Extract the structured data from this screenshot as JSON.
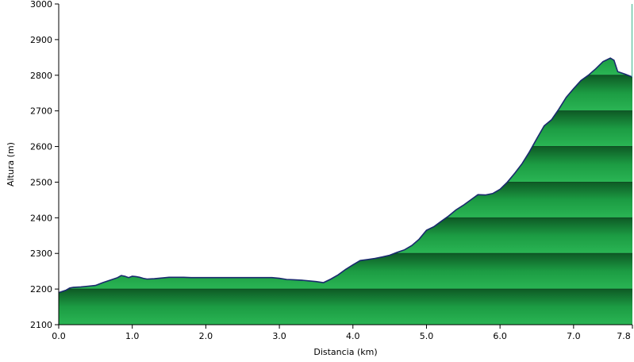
{
  "chart_data": {
    "type": "area",
    "title": "",
    "xlabel": "Distancia   (km)",
    "ylabel": "Altura (m)",
    "xlim": [
      0,
      7.8
    ],
    "ylim": [
      2100,
      3000
    ],
    "x_ticks": [
      0.0,
      1.0,
      2.0,
      3.0,
      4.0,
      5.0,
      6.0,
      7.0,
      7.8
    ],
    "x_tick_labels": [
      "0.0",
      "1.0",
      "2.0",
      "3.0",
      "4.0",
      "5.0",
      "6.0",
      "7.0",
      "7.8"
    ],
    "y_ticks": [
      2100,
      2200,
      2300,
      2400,
      2500,
      2600,
      2700,
      2800,
      2900,
      3000
    ],
    "y_tick_labels": [
      "2100",
      "2200",
      "2300",
      "2400",
      "2500",
      "2600",
      "2700",
      "2800",
      "2900",
      "3000"
    ],
    "grid": "horizontal",
    "colors": {
      "fill_light": "#27b04f",
      "fill_dark": "#167a35",
      "outline": "#1a2a6e",
      "grid": "#0f4d24",
      "axis": "#000000"
    },
    "series": [
      {
        "x": [
          0.0,
          0.1,
          0.15,
          0.2,
          0.3,
          0.4,
          0.5,
          0.6,
          0.7,
          0.8,
          0.85,
          0.9,
          0.95,
          1.0,
          1.05,
          1.1,
          1.15,
          1.2,
          1.3,
          1.4,
          1.5,
          1.6,
          1.7,
          1.8,
          2.0,
          2.2,
          2.4,
          2.6,
          2.8,
          2.9,
          3.0,
          3.1,
          3.2,
          3.3,
          3.4,
          3.5,
          3.6,
          3.7,
          3.8,
          3.9,
          4.0,
          4.1,
          4.2,
          4.3,
          4.4,
          4.5,
          4.6,
          4.7,
          4.8,
          4.9,
          5.0,
          5.1,
          5.2,
          5.3,
          5.4,
          5.5,
          5.6,
          5.7,
          5.8,
          5.9,
          6.0,
          6.1,
          6.2,
          6.3,
          6.4,
          6.5,
          6.6,
          6.7,
          6.8,
          6.9,
          7.0,
          7.1,
          7.2,
          7.3,
          7.4,
          7.5,
          7.55,
          7.6,
          7.7,
          7.8
        ],
        "y": [
          2190,
          2197,
          2203,
          2205,
          2206,
          2208,
          2210,
          2218,
          2225,
          2232,
          2238,
          2236,
          2232,
          2236,
          2235,
          2233,
          2230,
          2228,
          2229,
          2231,
          2233,
          2233,
          2233,
          2232,
          2232,
          2232,
          2232,
          2232,
          2232,
          2232,
          2230,
          2227,
          2226,
          2225,
          2223,
          2221,
          2218,
          2228,
          2240,
          2255,
          2268,
          2280,
          2283,
          2286,
          2290,
          2295,
          2303,
          2310,
          2322,
          2340,
          2365,
          2375,
          2390,
          2405,
          2422,
          2435,
          2450,
          2465,
          2464,
          2468,
          2480,
          2500,
          2525,
          2552,
          2585,
          2622,
          2658,
          2675,
          2705,
          2738,
          2762,
          2785,
          2800,
          2818,
          2838,
          2848,
          2842,
          2810,
          2803,
          2795
        ]
      }
    ]
  }
}
